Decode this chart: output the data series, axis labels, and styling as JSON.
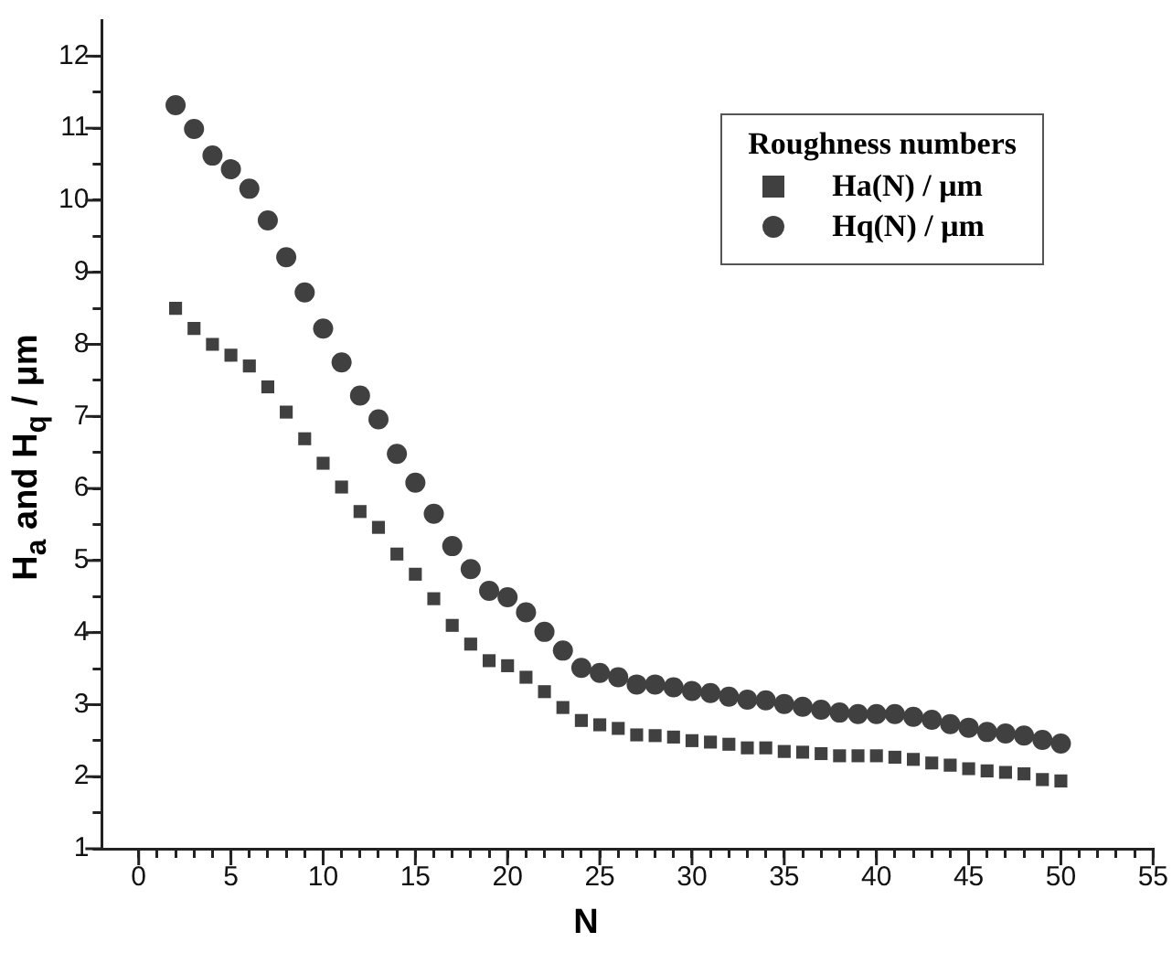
{
  "chart_data": {
    "type": "scatter",
    "xlabel": "N",
    "ylabel": "H$_{a}$ and H$_{q}$ / μm",
    "legend_title": "Roughness numbers",
    "legend": "top right",
    "grid": false,
    "x": [
      2,
      3,
      4,
      5,
      6,
      7,
      8,
      9,
      10,
      11,
      12,
      13,
      14,
      15,
      16,
      17,
      18,
      19,
      20,
      21,
      22,
      23,
      24,
      25,
      26,
      27,
      28,
      29,
      30,
      31,
      32,
      33,
      34,
      35,
      36,
      37,
      38,
      39,
      40,
      41,
      42,
      43,
      44,
      45,
      46,
      47,
      48,
      49,
      50
    ],
    "xlim": [
      -2,
      55
    ],
    "xticks": [
      0,
      {
        "value": 1,
        "label": null
      },
      {
        "value": 2,
        "label": null
      },
      {
        "value": 3,
        "label": null
      },
      {
        "value": 4,
        "label": null
      },
      5,
      {
        "value": 6,
        "label": null
      },
      {
        "value": 7,
        "label": null
      },
      {
        "value": 8,
        "label": null
      },
      {
        "value": 9,
        "label": null
      },
      10,
      {
        "value": 11,
        "label": null
      },
      {
        "value": 12,
        "label": null
      },
      {
        "value": 13,
        "label": null
      },
      {
        "value": 14,
        "label": null
      },
      15,
      {
        "value": 16,
        "label": null
      },
      {
        "value": 17,
        "label": null
      },
      {
        "value": 18,
        "label": null
      },
      {
        "value": 19,
        "label": null
      },
      20,
      {
        "value": 21,
        "label": null
      },
      {
        "value": 22,
        "label": null
      },
      {
        "value": 23,
        "label": null
      },
      {
        "value": 24,
        "label": null
      },
      25,
      {
        "value": 26,
        "label": null
      },
      {
        "value": 27,
        "label": null
      },
      {
        "value": 28,
        "label": null
      },
      {
        "value": 29,
        "label": null
      },
      30,
      {
        "value": 31,
        "label": null
      },
      {
        "value": 32,
        "label": null
      },
      {
        "value": 33,
        "label": null
      },
      {
        "value": 34,
        "label": null
      },
      35,
      {
        "value": 36,
        "label": null
      },
      {
        "value": 37,
        "label": null
      },
      {
        "value": 38,
        "label": null
      },
      {
        "value": 39,
        "label": null
      },
      40,
      {
        "value": 41,
        "label": null
      },
      {
        "value": 42,
        "label": null
      },
      {
        "value": 43,
        "label": null
      },
      {
        "value": 44,
        "label": null
      },
      45,
      {
        "value": 46,
        "label": null
      },
      {
        "value": 47,
        "label": null
      },
      {
        "value": 48,
        "label": null
      },
      {
        "value": 49,
        "label": null
      },
      50,
      {
        "value": 51,
        "label": null
      },
      {
        "value": 52,
        "label": null
      },
      {
        "value": 53,
        "label": null
      },
      {
        "value": 54,
        "label": null
      },
      55
    ],
    "ylim": [
      1,
      12.5
    ],
    "yticks": [
      1,
      {
        "value": 1.5,
        "label": null
      },
      2,
      {
        "value": 2.5,
        "label": null
      },
      3,
      {
        "value": 3.5,
        "label": null
      },
      4,
      {
        "value": 4.5,
        "label": null
      },
      5,
      {
        "value": 5.5,
        "label": null
      },
      6,
      {
        "value": 6.5,
        "label": null
      },
      7,
      {
        "value": 7.5,
        "label": null
      },
      8,
      {
        "value": 8.5,
        "label": null
      },
      9,
      {
        "value": 9.5,
        "label": null
      },
      10,
      {
        "value": 10.5,
        "label": null
      },
      11,
      {
        "value": 11.5,
        "label": null
      },
      12
    ],
    "series": [
      {
        "name": "Ha(N) / μm",
        "color": "#404040",
        "marker": "square",
        "values": [
          8.5,
          8.22,
          8.0,
          7.85,
          7.7,
          7.41,
          7.06,
          6.69,
          6.35,
          6.02,
          5.68,
          5.46,
          5.09,
          4.81,
          4.47,
          4.1,
          3.84,
          3.61,
          3.54,
          3.38,
          3.18,
          2.96,
          2.78,
          2.72,
          2.67,
          2.58,
          2.57,
          2.55,
          2.5,
          2.48,
          2.45,
          2.4,
          2.4,
          2.35,
          2.34,
          2.32,
          2.29,
          2.29,
          2.29,
          2.27,
          2.24,
          2.19,
          2.16,
          2.11,
          2.08,
          2.06,
          2.04,
          1.96,
          1.94
        ]
      },
      {
        "name": "Hq(N) / μm",
        "color": "#404040",
        "marker": "circle",
        "values": [
          11.32,
          10.99,
          10.62,
          10.43,
          10.16,
          9.72,
          9.21,
          8.72,
          8.22,
          7.75,
          7.29,
          6.96,
          6.48,
          6.08,
          5.65,
          5.2,
          4.88,
          4.58,
          4.49,
          4.28,
          4.01,
          3.75,
          3.51,
          3.44,
          3.38,
          3.28,
          3.28,
          3.24,
          3.19,
          3.16,
          3.11,
          3.07,
          3.06,
          3.01,
          2.97,
          2.93,
          2.89,
          2.87,
          2.87,
          2.87,
          2.83,
          2.79,
          2.73,
          2.68,
          2.62,
          2.6,
          2.57,
          2.51,
          2.46
        ]
      }
    ]
  }
}
